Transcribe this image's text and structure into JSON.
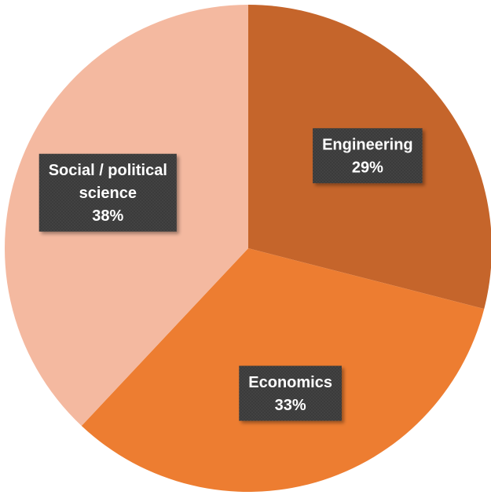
{
  "chart_data": {
    "type": "pie",
    "title": "",
    "slices": [
      {
        "category": "Engineering",
        "label_lines": [
          "Engineering"
        ],
        "percent_label": "29%",
        "value": 29,
        "color": "#c5652b"
      },
      {
        "category": "Economics",
        "label_lines": [
          "Economics"
        ],
        "percent_label": "33%",
        "value": 33,
        "color": "#ed7d31"
      },
      {
        "category": "Social / political science",
        "label_lines": [
          "Social / political",
          "science"
        ],
        "percent_label": "38%",
        "value": 38,
        "color": "#f4b9a0"
      }
    ],
    "legend": "none",
    "data_labels": "category and percentage inside slices"
  }
}
